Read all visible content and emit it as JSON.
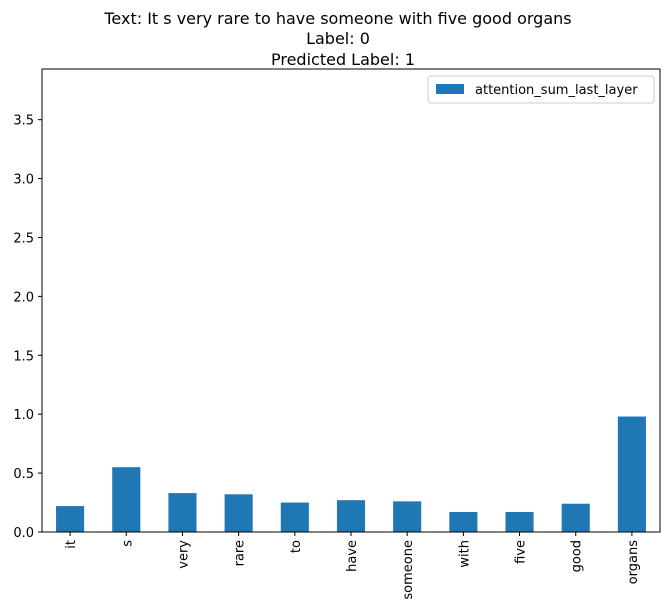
{
  "chart_data": {
    "type": "bar",
    "title_lines": [
      "Text: It s very rare to have someone with five good organs",
      "Label: 0",
      "Predicted Label: 1"
    ],
    "categories": [
      "it",
      "s",
      "very",
      "rare",
      "to",
      "have",
      "someone",
      "with",
      "five",
      "good",
      "organs"
    ],
    "series": [
      {
        "name": "attention_sum_last_layer",
        "values": [
          0.22,
          0.55,
          0.33,
          0.32,
          0.25,
          0.27,
          0.26,
          0.17,
          0.17,
          0.24,
          0.98
        ]
      }
    ],
    "ylim": [
      0,
      3.93
    ],
    "yticks": [
      "0.0",
      "0.5",
      "1.0",
      "1.5",
      "2.0",
      "2.5",
      "3.0",
      "3.5"
    ],
    "xlabel": "",
    "ylabel": "",
    "grid": false,
    "legend_position": "top-right",
    "bar_color": "#1f77b4"
  }
}
